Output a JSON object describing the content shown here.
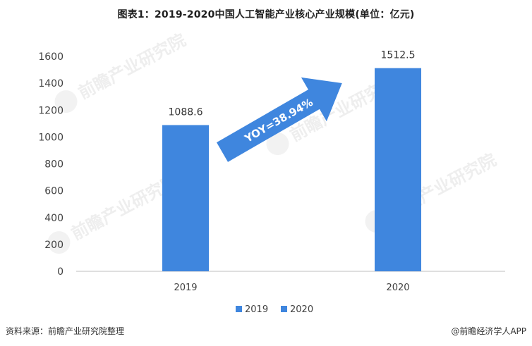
{
  "title": "图表1：2019-2020中国人工智能产业核心产业规模(单位：亿元)",
  "footer": {
    "source": "资料来源：前瞻产业研究院整理",
    "brand": "@前瞻经济学人APP"
  },
  "watermark": {
    "text": "前瞻产业研究院"
  },
  "annotation": {
    "text": "YOY=38.94%"
  },
  "colors": {
    "bar": "#3f86de",
    "arrow": "#3f86de",
    "axis": "#bfbfbf",
    "text": "#404040"
  },
  "chart_data": {
    "type": "bar",
    "categories": [
      "2019",
      "2020"
    ],
    "values": [
      1088.6,
      1512.5
    ],
    "value_labels": [
      "1088.6",
      "1512.5"
    ],
    "yticks": [
      "0",
      "200",
      "400",
      "600",
      "800",
      "1000",
      "1200",
      "1400",
      "1600"
    ],
    "ylim": [
      0,
      1600
    ],
    "grid": false,
    "legend_position": "bottom",
    "legend": [
      "2019",
      "2020"
    ]
  }
}
